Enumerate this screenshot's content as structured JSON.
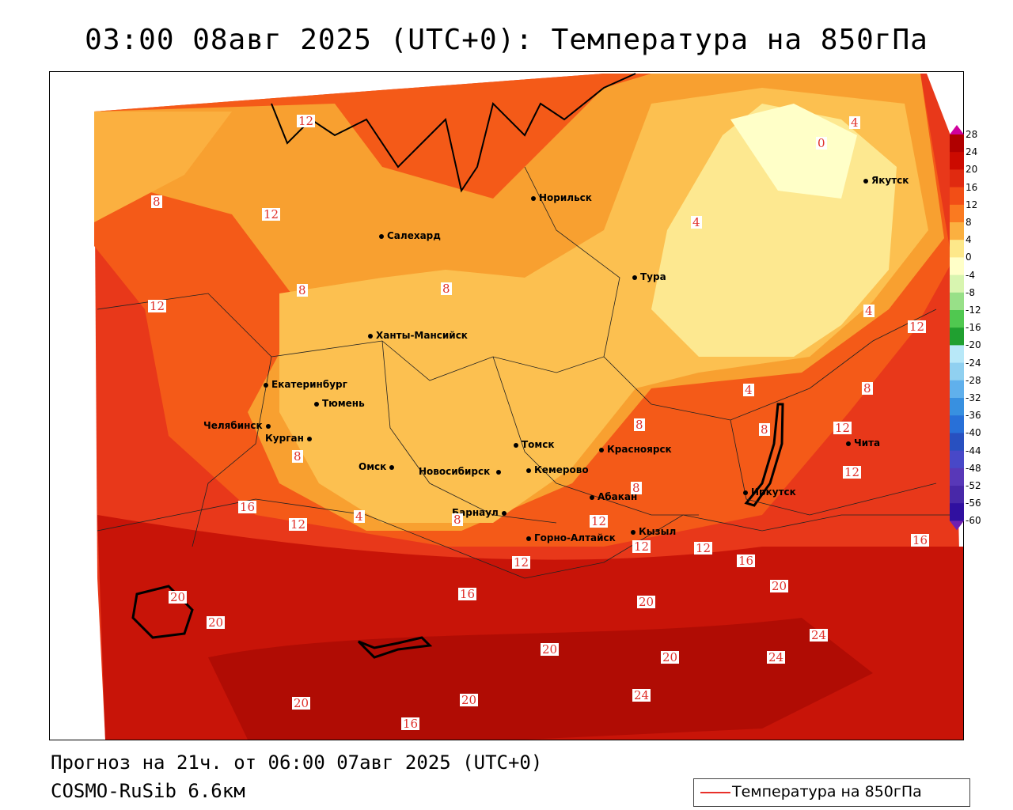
{
  "title": "03:00 08авг 2025 (UTC+0): Температура на 850гПа",
  "footer": {
    "forecast": "Прогноз на 21ч. от 06:00 07авг 2025 (UTC+0)",
    "model": "COSMO-RuSib 6.6км"
  },
  "legend": {
    "label": "Температура на 850гПа",
    "line_color": "#e8302a"
  },
  "colorbar": {
    "ticks": [
      "28",
      "24",
      "20",
      "16",
      "12",
      "8",
      "4",
      "0",
      "-4",
      "-8",
      "-12",
      "-16",
      "-20",
      "-24",
      "-28",
      "-32",
      "-36",
      "-40",
      "-44",
      "-48",
      "-52",
      "-56",
      "-60"
    ],
    "colors": [
      "#d0009c",
      "#b00000",
      "#cc0a00",
      "#e02a10",
      "#f24e16",
      "#fa7a20",
      "#fbb040",
      "#fde88a",
      "#ffffc8",
      "#d8f5b0",
      "#98e088",
      "#50c850",
      "#20a030",
      "#b8e8f8",
      "#90d0f0",
      "#60b0ec",
      "#3890e0",
      "#2870d8",
      "#2850c0",
      "#4848c8",
      "#5838b8",
      "#4828a8",
      "#3010a0",
      "#7020b0"
    ]
  },
  "cities": [
    {
      "name": "Норильск"
    },
    {
      "name": "Салехард"
    },
    {
      "name": "Тура"
    },
    {
      "name": "Якутск"
    },
    {
      "name": "Ханты-Мансийск"
    },
    {
      "name": "Екатеринбург"
    },
    {
      "name": "Тюмень"
    },
    {
      "name": "Челябинск"
    },
    {
      "name": "Курган"
    },
    {
      "name": "Омск"
    },
    {
      "name": "Томск"
    },
    {
      "name": "Новосибирск"
    },
    {
      "name": "Кемерово"
    },
    {
      "name": "Красноярск"
    },
    {
      "name": "Абакан"
    },
    {
      "name": "Барнаул"
    },
    {
      "name": "Горно-Алтайск"
    },
    {
      "name": "Кызыл"
    },
    {
      "name": "Иркутск"
    },
    {
      "name": "Чита"
    }
  ],
  "isotherm_labels": [
    "12",
    "8",
    "12",
    "12",
    "8",
    "8",
    "4",
    "0",
    "4",
    "4",
    "12",
    "8",
    "8",
    "8",
    "12",
    "8",
    "4",
    "16",
    "12",
    "4",
    "8",
    "12",
    "8",
    "12",
    "12",
    "16",
    "16",
    "12",
    "20",
    "20",
    "16",
    "20",
    "20",
    "20",
    "20",
    "20",
    "20",
    "24",
    "24",
    "24",
    "16",
    "12"
  ]
}
